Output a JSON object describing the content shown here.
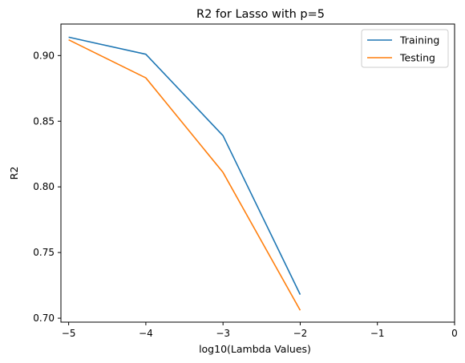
{
  "chart_data": {
    "type": "line",
    "title": "R2 for Lasso with p=5",
    "xlabel": "log10(Lambda Values)",
    "ylabel": "R2",
    "xlim": [
      -5.1,
      0.0
    ],
    "ylim": [
      0.697,
      0.924
    ],
    "xticks": [
      -5,
      -4,
      -3,
      -2,
      -1,
      0
    ],
    "xtick_labels": [
      "−5",
      "−4",
      "−3",
      "−2",
      "−1",
      "0"
    ],
    "yticks": [
      0.7,
      0.75,
      0.8,
      0.85,
      0.9
    ],
    "ytick_labels": [
      "0.70",
      "0.75",
      "0.80",
      "0.85",
      "0.90"
    ],
    "grid": false,
    "legend_position": "top-right",
    "x": [
      -5,
      -4,
      -3,
      -2
    ],
    "series": [
      {
        "name": "Training",
        "color": "#1f77b4",
        "values": [
          0.914,
          0.901,
          0.839,
          0.718
        ]
      },
      {
        "name": "Testing",
        "color": "#ff7f0e",
        "values": [
          0.912,
          0.883,
          0.811,
          0.706
        ]
      }
    ]
  }
}
